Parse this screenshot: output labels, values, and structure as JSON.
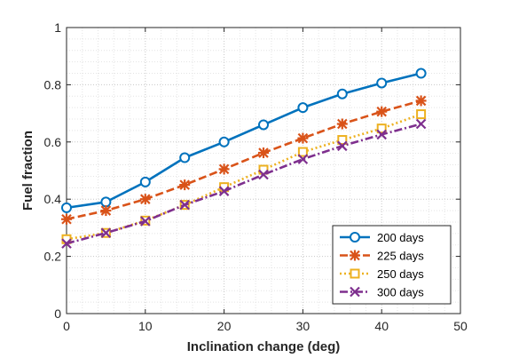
{
  "chart_data": {
    "type": "line",
    "xlabel": "Inclination change (deg)",
    "ylabel": "Fuel fraction",
    "xlim": [
      0,
      50
    ],
    "ylim": [
      0,
      1
    ],
    "xticks": [
      "0",
      "10",
      "20",
      "30",
      "40",
      "50"
    ],
    "yticks": [
      "0",
      "0.2",
      "0.4",
      "0.6",
      "0.8",
      "1"
    ],
    "grid": "major and minor, dotted",
    "legend_position": "bottom-right",
    "x": [
      0,
      5,
      10,
      15,
      20,
      25,
      30,
      35,
      40,
      45
    ],
    "series": [
      {
        "name": "200 days",
        "color": "#0072BD",
        "line": "solid",
        "marker": "circle",
        "values": [
          0.37,
          0.39,
          0.46,
          0.545,
          0.6,
          0.66,
          0.72,
          0.768,
          0.806,
          0.84
        ]
      },
      {
        "name": "225 days",
        "color": "#D95319",
        "line": "dashed",
        "marker": "asterisk",
        "values": [
          0.33,
          0.36,
          0.4,
          0.45,
          0.505,
          0.562,
          0.613,
          0.663,
          0.706,
          0.744
        ]
      },
      {
        "name": "250 days",
        "color": "#EDB120",
        "line": "dotted",
        "marker": "square",
        "values": [
          0.26,
          0.282,
          0.325,
          0.38,
          0.442,
          0.503,
          0.565,
          0.607,
          0.647,
          0.697
        ]
      },
      {
        "name": "300 days",
        "color": "#7E2F8E",
        "line": "dashdot",
        "marker": "x",
        "values": [
          0.245,
          0.282,
          0.323,
          0.38,
          0.428,
          0.486,
          0.54,
          0.586,
          0.626,
          0.663
        ]
      }
    ]
  }
}
